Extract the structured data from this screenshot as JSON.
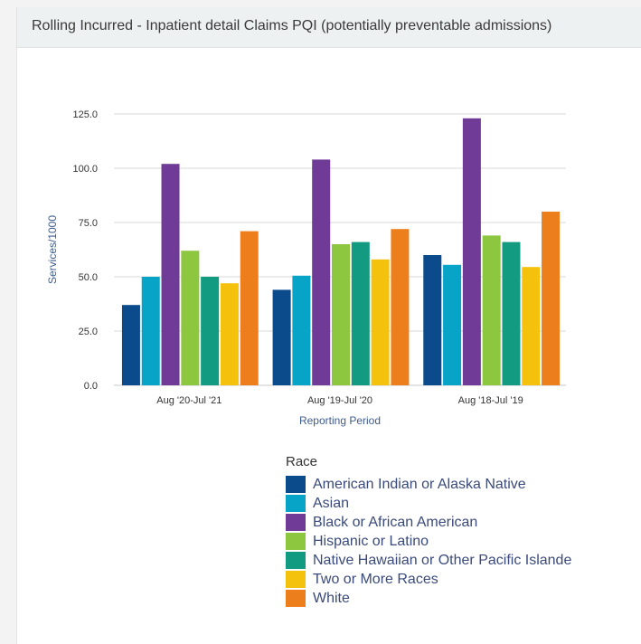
{
  "header": {
    "title": "Rolling Incurred - Inpatient detail Claims PQI (potentially preventable admissions)"
  },
  "chart_data": {
    "type": "bar",
    "title": "",
    "xlabel": "Reporting Period",
    "ylabel": "Services/1000",
    "ylim": [
      0,
      125
    ],
    "yticks": [
      "0.0",
      "25.0",
      "50.0",
      "75.0",
      "100.0",
      "125.0"
    ],
    "ytick_values": [
      0,
      25,
      50,
      75,
      100,
      125
    ],
    "grid": true,
    "legend_position": "bottom",
    "legend_title": "Race",
    "categories": [
      "Aug '20-Jul '21",
      "Aug '19-Jul '20",
      "Aug '18-Jul '19"
    ],
    "series": [
      {
        "name": "American Indian or Alaska Native",
        "color": "#0b4a8b",
        "values": [
          37,
          44,
          60
        ]
      },
      {
        "name": "Asian",
        "color": "#08a4c8",
        "values": [
          50,
          50.5,
          55.5
        ]
      },
      {
        "name": "Black or African American",
        "color": "#6f3b96",
        "values": [
          102,
          104,
          123
        ]
      },
      {
        "name": "Hispanic or Latino",
        "color": "#8dc63f",
        "values": [
          62,
          65,
          69
        ]
      },
      {
        "name": "Native Hawaiian or Other Pacific Islande",
        "color": "#139b82",
        "values": [
          50,
          66,
          66
        ]
      },
      {
        "name": "Two or More Races",
        "color": "#f4c20d",
        "values": [
          47,
          58,
          54.5
        ]
      },
      {
        "name": "White",
        "color": "#ec7f1c",
        "values": [
          71,
          72,
          80
        ]
      }
    ]
  }
}
